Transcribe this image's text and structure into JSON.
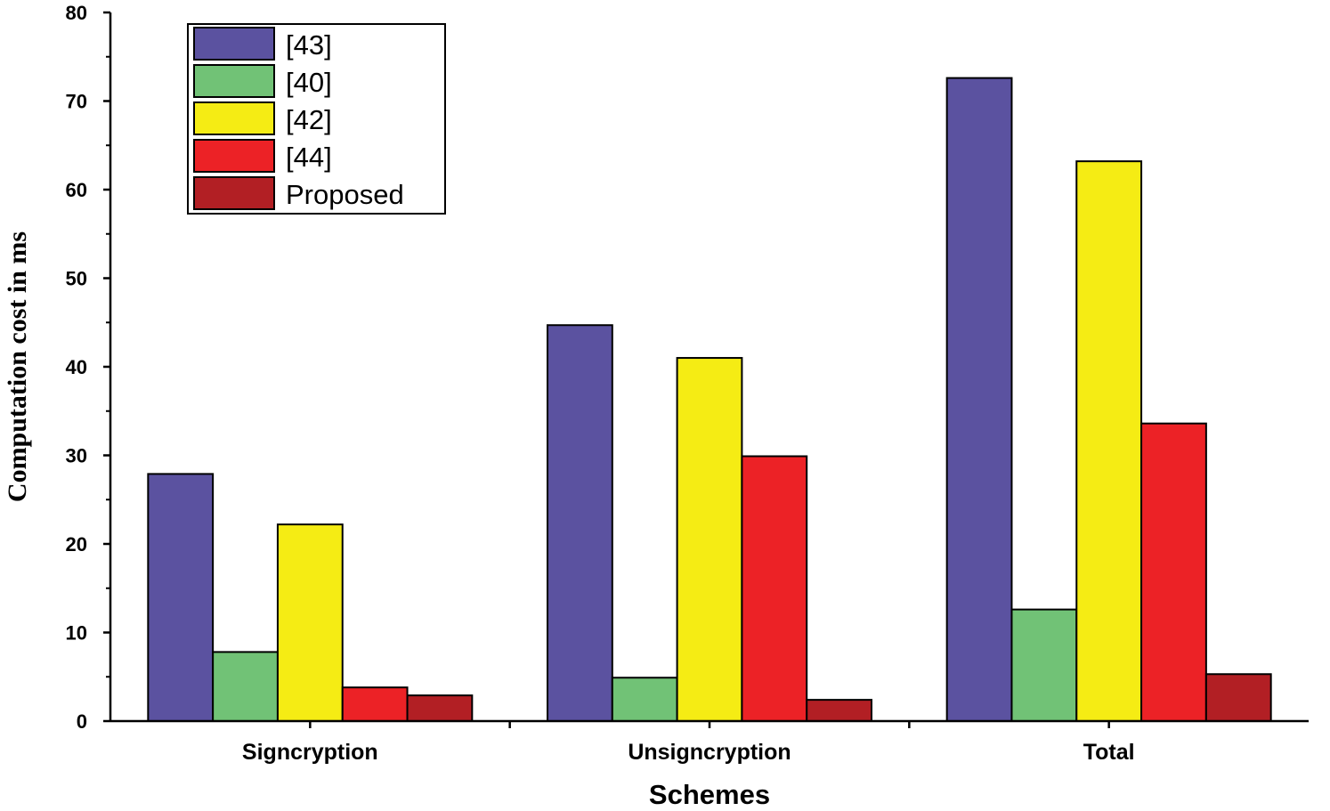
{
  "chart_data": {
    "type": "bar",
    "title": "",
    "xlabel": "Schemes",
    "ylabel": "Computation cost in ms",
    "ylim": [
      0,
      80
    ],
    "yticks": [
      0,
      10,
      20,
      30,
      40,
      50,
      60,
      70,
      80
    ],
    "grid": false,
    "legend_position": "top-left",
    "categories": [
      "Signcryption",
      "Unsigncryption",
      "Total"
    ],
    "series": [
      {
        "name": "[43]",
        "color": "#5b52a0",
        "values": [
          27.9,
          44.7,
          72.6
        ]
      },
      {
        "name": "[40]",
        "color": "#71c276",
        "values": [
          7.8,
          4.9,
          12.6
        ]
      },
      {
        "name": "[42]",
        "color": "#f5ec14",
        "values": [
          22.2,
          41.0,
          63.2
        ]
      },
      {
        "name": "[44]",
        "color": "#ec2226",
        "values": [
          3.8,
          29.9,
          33.6
        ]
      },
      {
        "name": "Proposed",
        "color": "#b21f24",
        "values": [
          2.9,
          2.4,
          5.3
        ]
      }
    ]
  }
}
